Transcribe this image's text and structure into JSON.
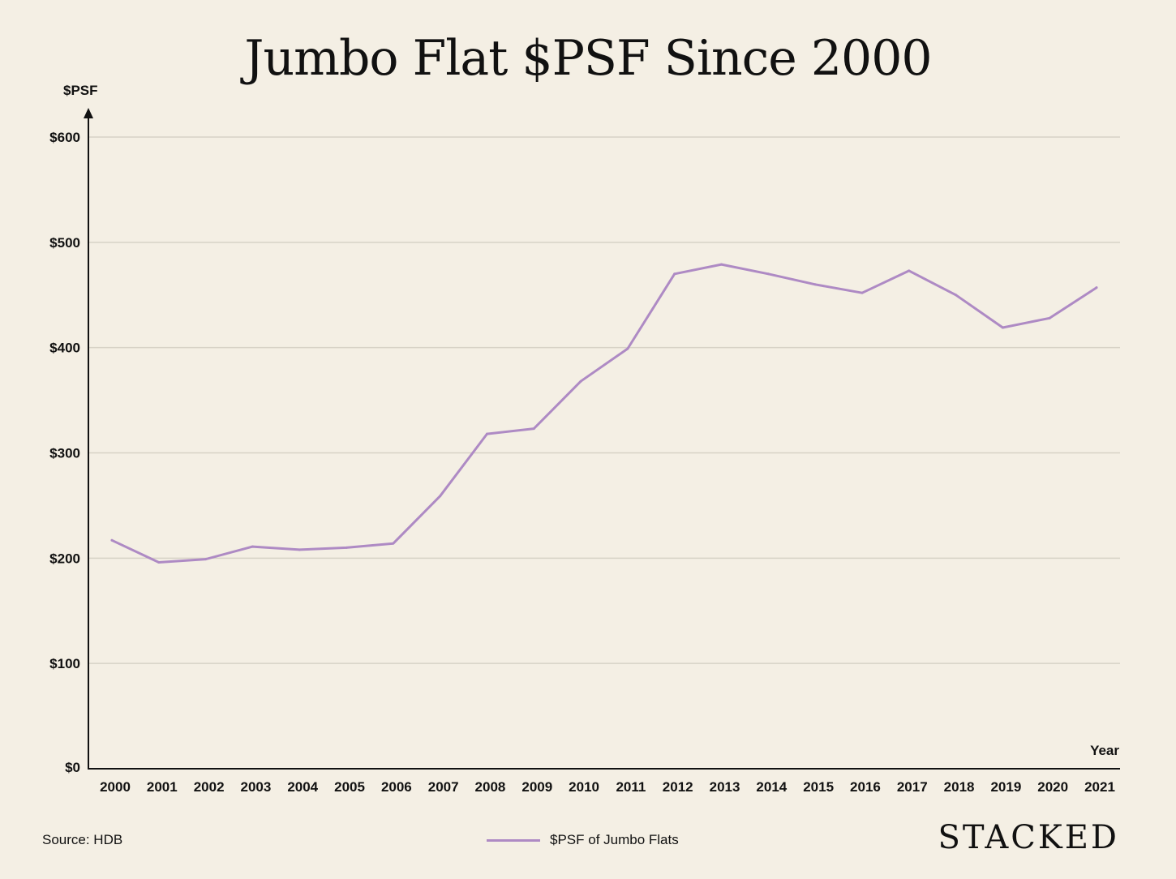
{
  "colors": {
    "background": "#f4efe4",
    "line": "#ae8ac4",
    "grid": "#d7d2c6",
    "axis": "#111111"
  },
  "footer": {
    "source": "Source: HDB",
    "brand": "STACKED"
  },
  "chart_data": {
    "type": "line",
    "title": "Jumbo Flat $PSF Since 2000",
    "xlabel": "Year",
    "ylabel": "$PSF",
    "ylim": [
      0,
      600
    ],
    "yticks": [
      0,
      100,
      200,
      300,
      400,
      500,
      600
    ],
    "ytick_labels": [
      "$0",
      "$100",
      "$200",
      "$300",
      "$400",
      "$500",
      "$600"
    ],
    "grid": true,
    "legend_position": "bottom-center",
    "x": [
      "2000",
      "2001",
      "2002",
      "2003",
      "2004",
      "2005",
      "2006",
      "2007",
      "2008",
      "2009",
      "2010",
      "2011",
      "2012",
      "2013",
      "2014",
      "2015",
      "2016",
      "2017",
      "2018",
      "2019",
      "2020",
      "2021"
    ],
    "series": [
      {
        "name": "$PSF of Jumbo Flats",
        "values": [
          217,
          196,
          199,
          211,
          208,
          210,
          214,
          259,
          318,
          323,
          368,
          399,
          470,
          479,
          470,
          460,
          452,
          473,
          450,
          419,
          428,
          457
        ]
      }
    ]
  }
}
